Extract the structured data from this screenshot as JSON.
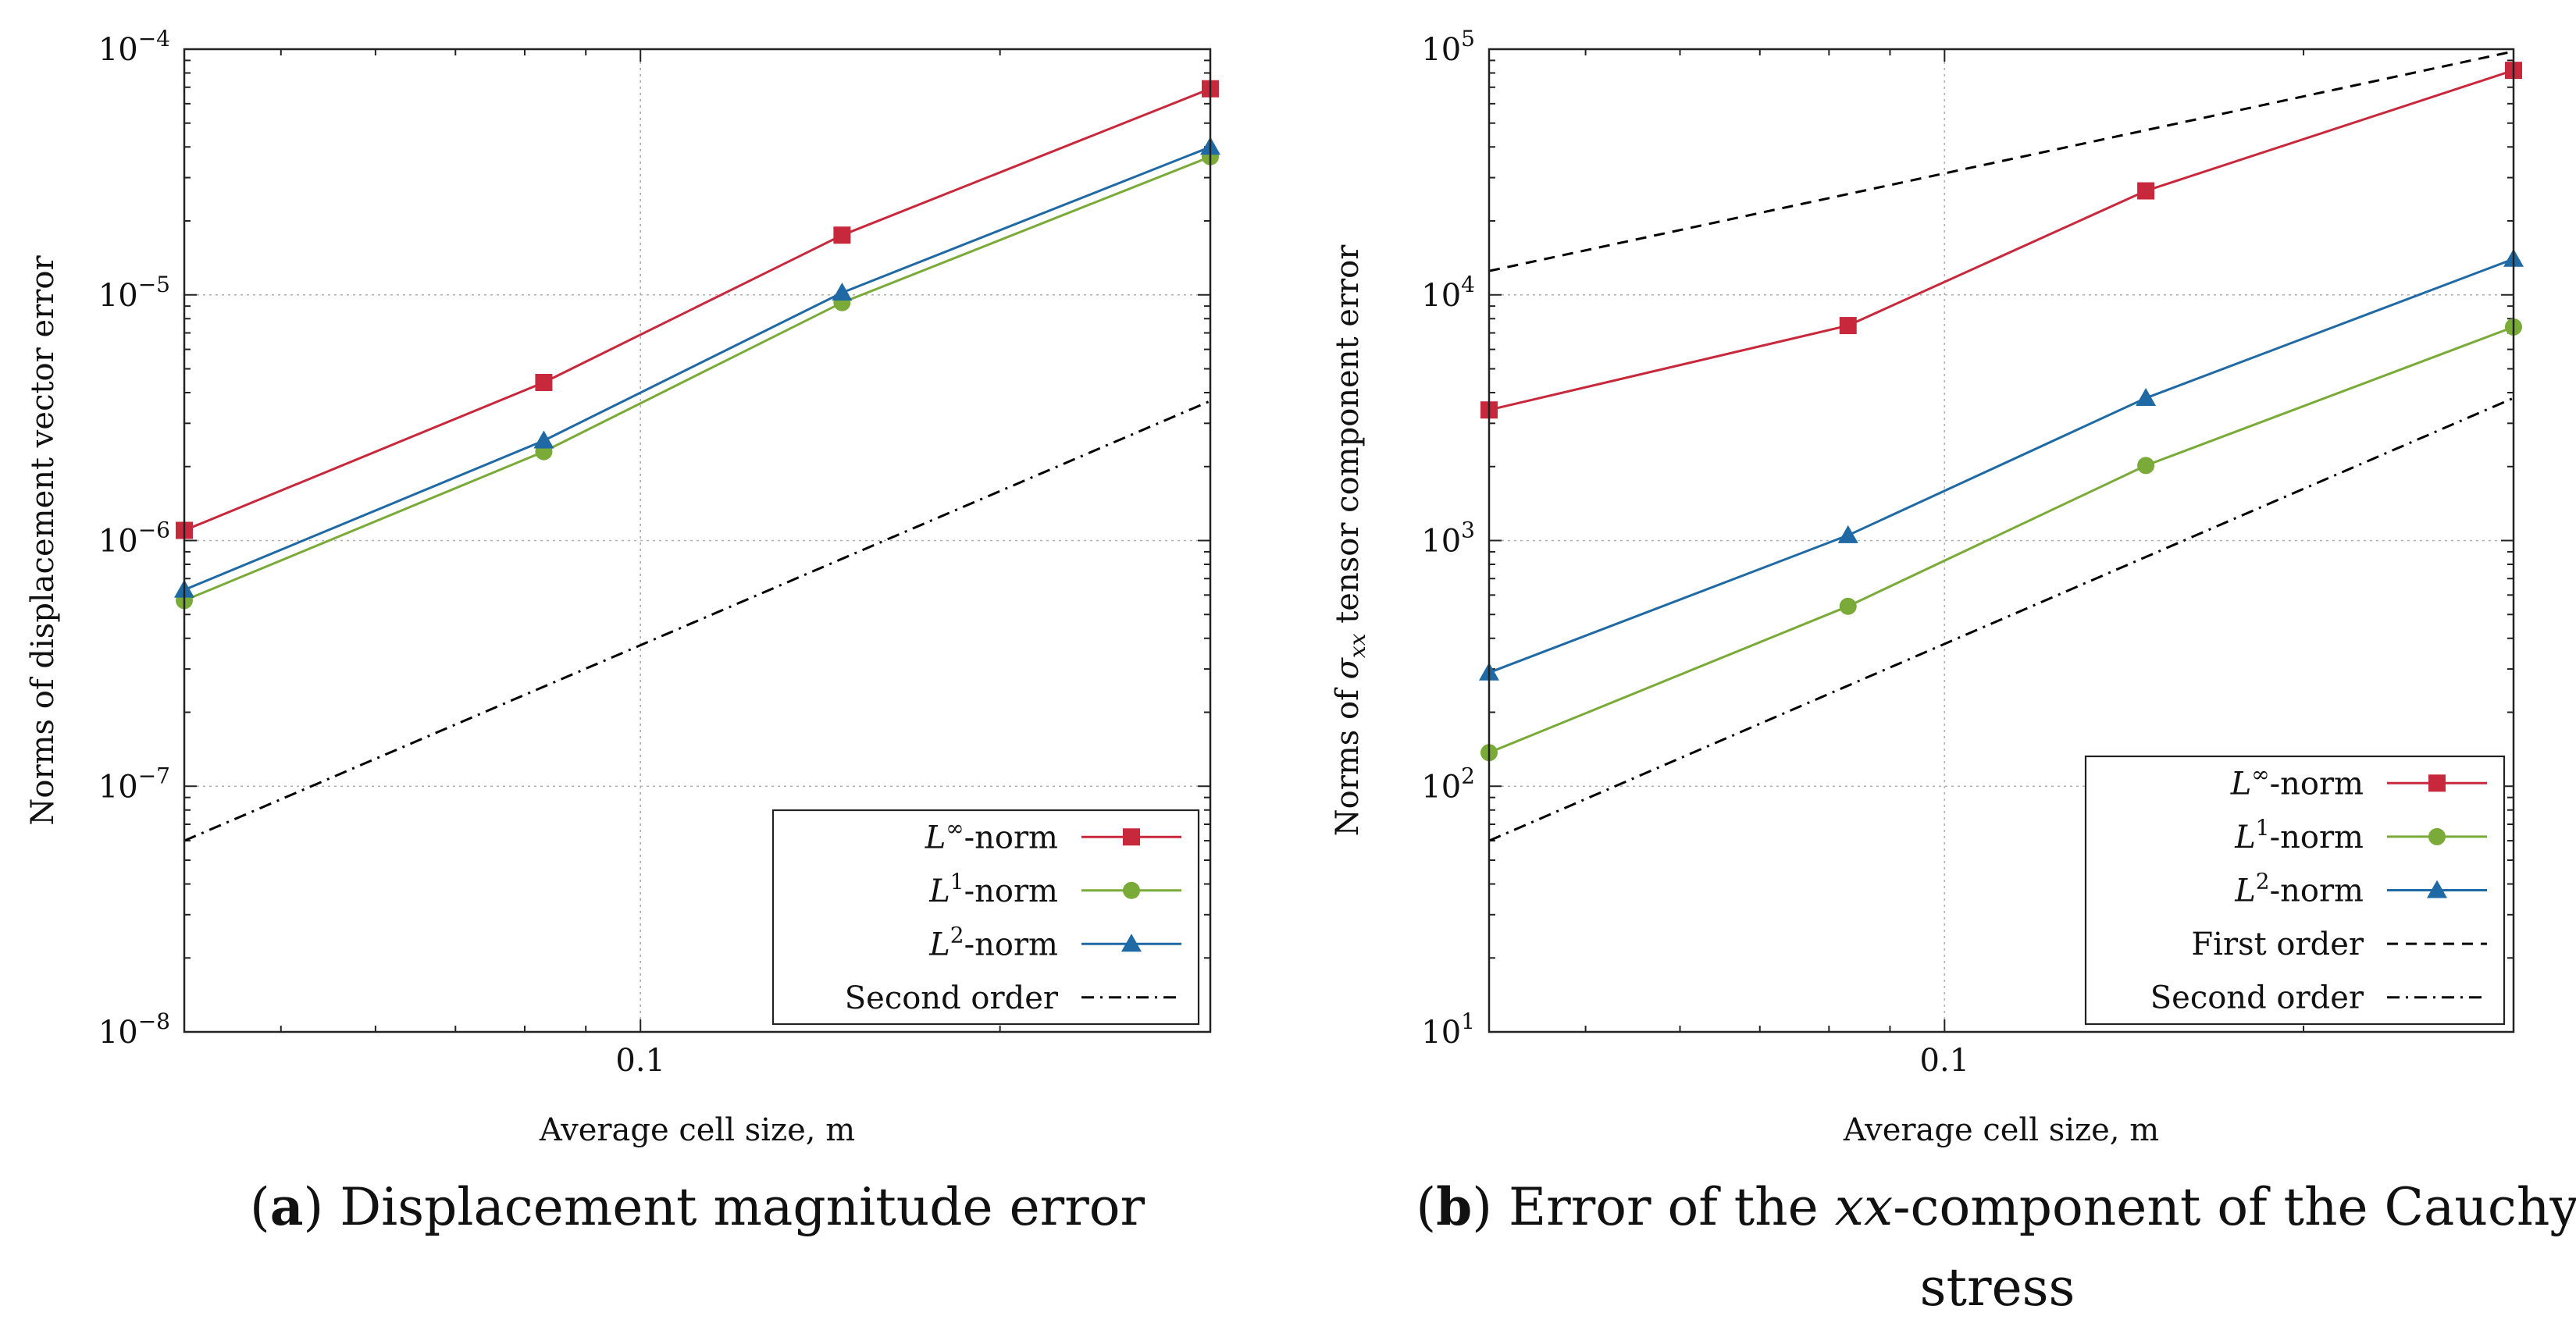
{
  "colors": {
    "linf": "#c8283c",
    "l1": "#7aaa38",
    "l2": "#1f6aa5",
    "ref": "#000000"
  },
  "chart_data": [
    {
      "type": "line",
      "panel": "a",
      "caption_label": "a",
      "caption_text": "Displacement magnitude error",
      "xlabel": "Average cell size, m",
      "ylabel": "Norms of displacement vector error",
      "xscale": "log",
      "yscale": "log",
      "xlim": [
        0.0415,
        0.3
      ],
      "ylim": [
        1e-08,
        0.0001
      ],
      "x_tick_labels": [
        {
          "value": 0.1,
          "label": "0.1"
        }
      ],
      "y_tick_labels": [
        {
          "value": 1e-08,
          "base": "10",
          "exp": "−8"
        },
        {
          "value": 1e-07,
          "base": "10",
          "exp": "−7"
        },
        {
          "value": 1e-06,
          "base": "10",
          "exp": "−6"
        },
        {
          "value": 1e-05,
          "base": "10",
          "exp": "−5"
        },
        {
          "value": 0.0001,
          "base": "10",
          "exp": "−4"
        }
      ],
      "grid": true,
      "legend_position": "bottom-right",
      "series": [
        {
          "name": "L∞-norm",
          "label_main": "L",
          "label_sup": "∞",
          "label_rest": "-norm",
          "color_key": "linf",
          "marker": "square",
          "dash": "solid",
          "x": [
            0.0415,
            0.083,
            0.1475,
            0.3
          ],
          "y": [
            1.1e-06,
            4.4e-06,
            1.75e-05,
            6.9e-05
          ]
        },
        {
          "name": "L1-norm",
          "label_main": "L",
          "label_sup": "1",
          "label_rest": "-norm",
          "color_key": "l1",
          "marker": "circle",
          "dash": "solid",
          "x": [
            0.0415,
            0.083,
            0.1475,
            0.3
          ],
          "y": [
            5.7e-07,
            2.3e-06,
            9.3e-06,
            3.65e-05
          ]
        },
        {
          "name": "L2-norm",
          "label_main": "L",
          "label_sup": "2",
          "label_rest": "-norm",
          "color_key": "l2",
          "marker": "triangle",
          "dash": "solid",
          "x": [
            0.0415,
            0.083,
            0.1475,
            0.3
          ],
          "y": [
            6.3e-07,
            2.55e-06,
            1.02e-05,
            4e-05
          ]
        },
        {
          "name": "Second order",
          "label_main": "Second order",
          "color_key": "ref",
          "marker": "none",
          "dash": "dashdot",
          "x": [
            0.0415,
            0.3
          ],
          "y": [
            6e-08,
            3.7e-06
          ]
        }
      ]
    },
    {
      "type": "line",
      "panel": "b",
      "caption_label": "b",
      "caption_text_1": "Error of the",
      "caption_math": "xx",
      "caption_text_2": "-component of the Cauchy",
      "caption_text_line2": "stress",
      "xlabel": "Average cell size, m",
      "ylabel_prefix": "Norms of",
      "ylabel_sym": "σ",
      "ylabel_sub": "xx",
      "ylabel_suffix": "tensor component error",
      "xscale": "log",
      "yscale": "log",
      "xlim": [
        0.0415,
        0.3
      ],
      "ylim": [
        10,
        100000
      ],
      "x_tick_labels": [
        {
          "value": 0.1,
          "label": "0.1"
        }
      ],
      "y_tick_labels": [
        {
          "value": 10,
          "base": "10",
          "exp": "1"
        },
        {
          "value": 100,
          "base": "10",
          "exp": "2"
        },
        {
          "value": 1000,
          "base": "10",
          "exp": "3"
        },
        {
          "value": 10000,
          "base": "10",
          "exp": "4"
        },
        {
          "value": 100000,
          "base": "10",
          "exp": "5"
        }
      ],
      "grid": true,
      "legend_position": "bottom-right",
      "series": [
        {
          "name": "L∞-norm",
          "label_main": "L",
          "label_sup": "∞",
          "label_rest": "-norm",
          "color_key": "linf",
          "marker": "square",
          "dash": "solid",
          "x": [
            0.0415,
            0.083,
            0.1475,
            0.3
          ],
          "y": [
            3400,
            7500,
            26500,
            82000
          ]
        },
        {
          "name": "L1-norm",
          "label_main": "L",
          "label_sup": "1",
          "label_rest": "-norm",
          "color_key": "l1",
          "marker": "circle",
          "dash": "solid",
          "x": [
            0.0415,
            0.083,
            0.1475,
            0.3
          ],
          "y": [
            137,
            540,
            2020,
            7400
          ]
        },
        {
          "name": "L2-norm",
          "label_main": "L",
          "label_sup": "2",
          "label_rest": "-norm",
          "color_key": "l2",
          "marker": "triangle",
          "dash": "solid",
          "x": [
            0.0415,
            0.083,
            0.1475,
            0.3
          ],
          "y": [
            290,
            1050,
            3800,
            14000
          ]
        },
        {
          "name": "First order",
          "label_main": "First order",
          "color_key": "ref",
          "marker": "none",
          "dash": "dashed",
          "x": [
            0.0415,
            0.3
          ],
          "y": [
            12500,
            98000
          ]
        },
        {
          "name": "Second order",
          "label_main": "Second order",
          "color_key": "ref",
          "marker": "none",
          "dash": "dashdot",
          "x": [
            0.0415,
            0.3
          ],
          "y": [
            60,
            3800
          ]
        }
      ]
    }
  ]
}
